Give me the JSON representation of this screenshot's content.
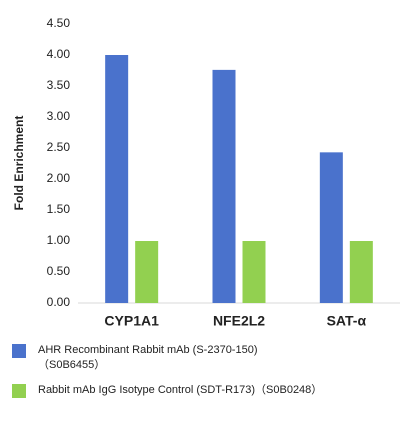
{
  "chart_data": {
    "type": "bar",
    "y_label": "Fold Enrichment",
    "categories": [
      "CYP1A1",
      "NFE2L2",
      "SAT-α"
    ],
    "series": [
      {
        "name": "AHR Recombinant Rabbit mAb (S-2370-150)（S0B6455）",
        "color": "#4a72cc",
        "values": [
          4.0,
          3.76,
          2.43
        ]
      },
      {
        "name": "Rabbit mAb IgG Isotype Control (SDT-R173)（S0B0248）",
        "color": "#92d050",
        "values": [
          1.0,
          1.0,
          1.0
        ]
      }
    ],
    "ylim": [
      0,
      4.5
    ],
    "yticks": [
      {
        "value": 0,
        "label": "0.00"
      },
      {
        "value": 0.5,
        "label": "0.50"
      },
      {
        "value": 1,
        "label": "1.00"
      },
      {
        "value": 1.5,
        "label": "1.50"
      },
      {
        "value": 2,
        "label": "2.00"
      },
      {
        "value": 2.5,
        "label": "2.50"
      },
      {
        "value": 3,
        "label": "3.00"
      },
      {
        "value": 3.5,
        "label": "3.50"
      },
      {
        "value": 4,
        "label": "4.00"
      },
      {
        "value": 4.5,
        "label": "4.50"
      }
    ],
    "grid": false
  }
}
